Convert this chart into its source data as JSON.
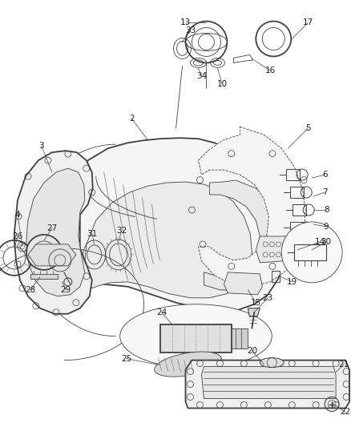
{
  "bg_color": "#ffffff",
  "line_color": "#404040",
  "label_color": "#222222",
  "fig_width": 4.38,
  "fig_height": 5.33,
  "dpi": 100
}
